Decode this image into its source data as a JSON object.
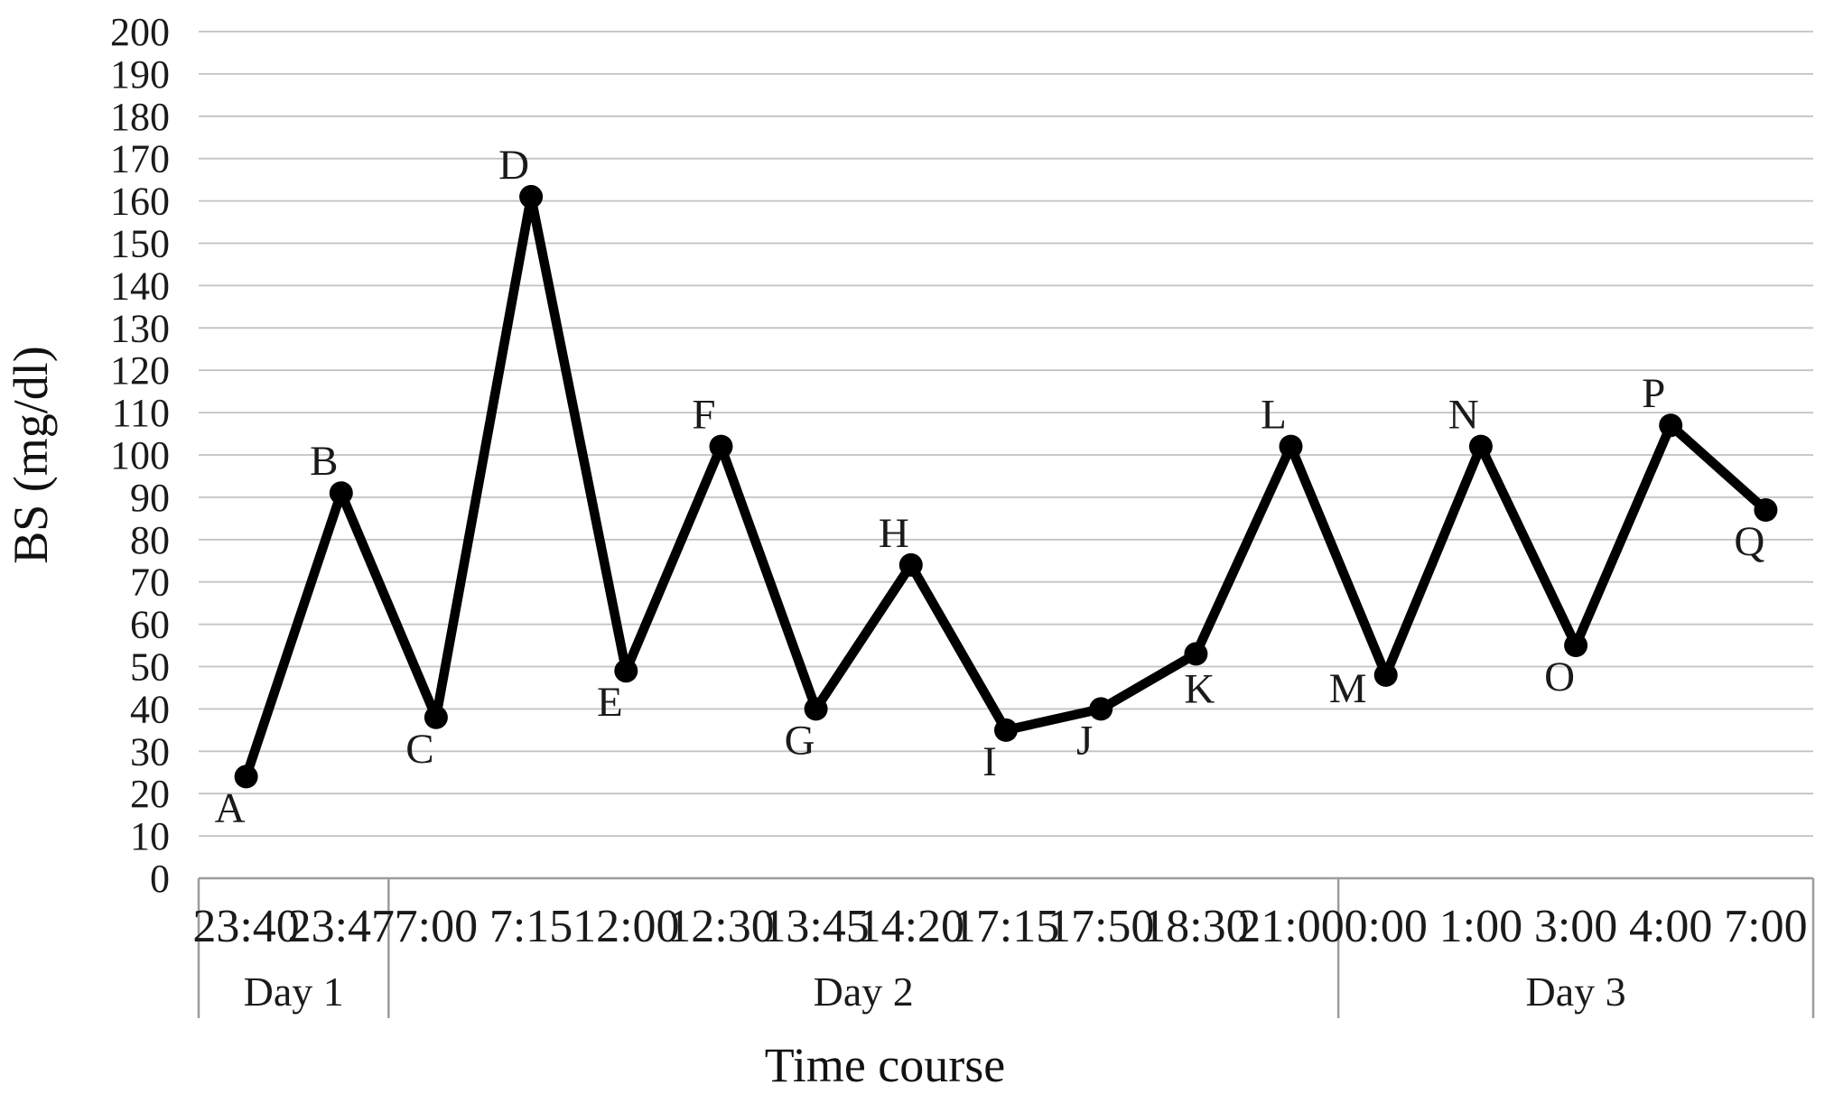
{
  "chart_data": {
    "type": "line",
    "title": "",
    "xlabel": "Time course",
    "ylabel": "BS (mg/dl)",
    "ylim": [
      0,
      200
    ],
    "ytick_step": 10,
    "grid": true,
    "legend": "none",
    "series_color": "#000000",
    "gridline_color": "#c2c2c2",
    "border_color": "#9c9c9c",
    "text_color": "#1a1a1a",
    "categories": [
      "23:40",
      "23:47",
      "7:00",
      "7:15",
      "12:00",
      "12:30",
      "13:45",
      "14:20",
      "17:15",
      "17:50",
      "18:30",
      "21:00",
      "0:00",
      "1:00",
      "3:00",
      "4:00",
      "7:00"
    ],
    "values": [
      24,
      91,
      38,
      161,
      49,
      102,
      40,
      74,
      35,
      40,
      53,
      102,
      48,
      102,
      55,
      107,
      87
    ],
    "points": [
      {
        "label": "A",
        "time": "23:40",
        "day": "Day 1",
        "value": 24,
        "label_side": "below"
      },
      {
        "label": "B",
        "time": "23:47",
        "day": "Day 1",
        "value": 91,
        "label_side": "above"
      },
      {
        "label": "C",
        "time": "7:00",
        "day": "Day 2",
        "value": 38,
        "label_side": "below"
      },
      {
        "label": "D",
        "time": "7:15",
        "day": "Day 2",
        "value": 161,
        "label_side": "above"
      },
      {
        "label": "E",
        "time": "12:00",
        "day": "Day 2",
        "value": 49,
        "label_side": "below"
      },
      {
        "label": "F",
        "time": "12:30",
        "day": "Day 2",
        "value": 102,
        "label_side": "above"
      },
      {
        "label": "G",
        "time": "13:45",
        "day": "Day 2",
        "value": 40,
        "label_side": "below"
      },
      {
        "label": "H",
        "time": "14:20",
        "day": "Day 2",
        "value": 74,
        "label_side": "above"
      },
      {
        "label": "I",
        "time": "17:15",
        "day": "Day 2",
        "value": 35,
        "label_side": "below"
      },
      {
        "label": "J",
        "time": "17:50",
        "day": "Day 2",
        "value": 40,
        "label_side": "below"
      },
      {
        "label": "K",
        "time": "18:30",
        "day": "Day 2",
        "value": 53,
        "label_side": "below-right"
      },
      {
        "label": "L",
        "time": "21:00",
        "day": "Day 2",
        "value": 102,
        "label_side": "above"
      },
      {
        "label": "M",
        "time": "0:00",
        "day": "Day 3",
        "value": 48,
        "label_side": "left"
      },
      {
        "label": "N",
        "time": "1:00",
        "day": "Day 3",
        "value": 102,
        "label_side": "above"
      },
      {
        "label": "O",
        "time": "3:00",
        "day": "Day 3",
        "value": 55,
        "label_side": "below"
      },
      {
        "label": "P",
        "time": "4:00",
        "day": "Day 3",
        "value": 107,
        "label_side": "above"
      },
      {
        "label": "Q",
        "time": "7:00",
        "day": "Day 3",
        "value": 87,
        "label_side": "below"
      }
    ],
    "day_groups": [
      {
        "label": "Day 1",
        "count": 2
      },
      {
        "label": "Day 2",
        "count": 10
      },
      {
        "label": "Day 3",
        "count": 5
      }
    ]
  }
}
